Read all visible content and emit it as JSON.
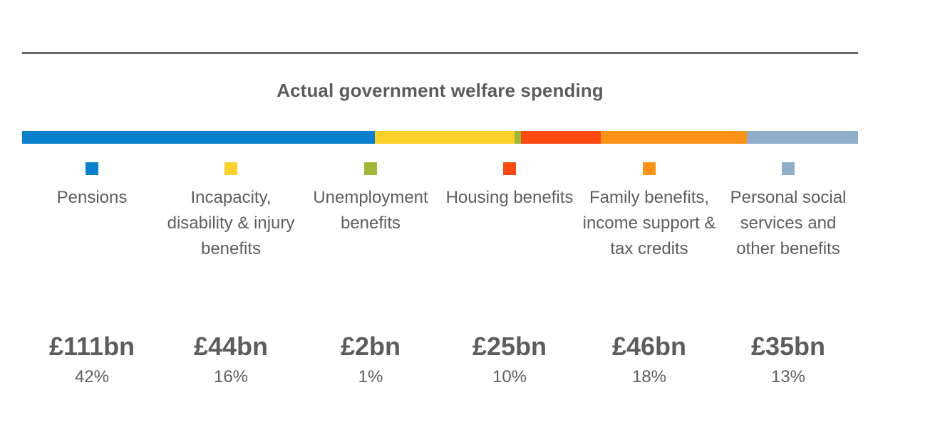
{
  "chart_data": {
    "type": "bar",
    "orientation": "horizontal-stacked",
    "title": "Actual government welfare spending",
    "categories": [
      "Pensions",
      "Incapacity, disability & injury benefits",
      "Unemployment benefits",
      "Housing benefits",
      "Family benefits, income support & tax credits",
      "Personal social services and other benefits"
    ],
    "values": [
      111,
      44,
      2,
      25,
      46,
      35
    ],
    "unit": "£bn",
    "value_labels": [
      "£111bn",
      "£44bn",
      "£2bn",
      "£25bn",
      "£46bn",
      "£35bn"
    ],
    "percent_labels": [
      "42%",
      "16%",
      "1%",
      "10%",
      "18%",
      "13%"
    ],
    "colors": [
      "#0a7fcc",
      "#fcd12a",
      "#9fb83a",
      "#fa4a12",
      "#fb9319",
      "#8faec9"
    ],
    "grid": false,
    "legend": "below"
  }
}
